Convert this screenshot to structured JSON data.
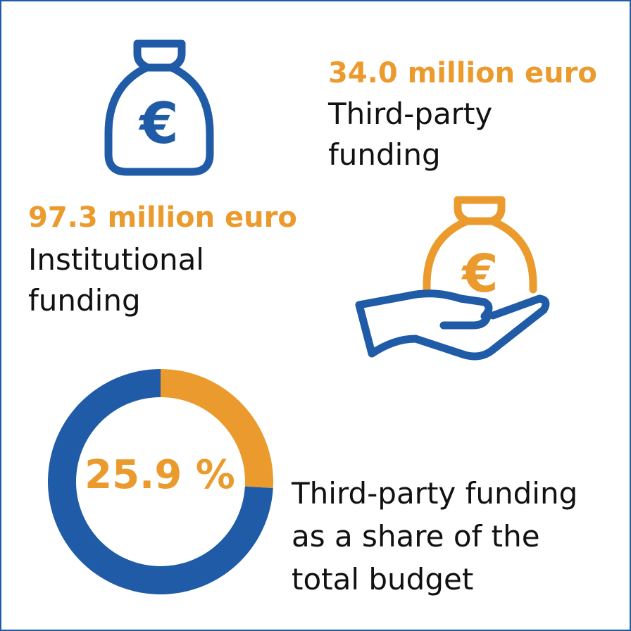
{
  "funding": {
    "third_party": {
      "amount": "34.0 million euro",
      "label_line1": "Third-party",
      "label_line2": "funding"
    },
    "institutional": {
      "amount": "97.3 million euro",
      "label_line1": "Institutional",
      "label_line2": "funding"
    }
  },
  "share": {
    "percent_text": "25.9 %",
    "label_line1": "Third-party funding",
    "label_line2": "as a share of the",
    "label_line3": "total budget"
  },
  "icons": {
    "money_bag": "euro-money-bag-icon",
    "hand_with_bag": "hand-holding-money-bag-icon"
  },
  "colors": {
    "blue": "#1f5ba6",
    "orange": "#eb9b2d",
    "text": "#111111"
  },
  "chart_data": {
    "type": "pie",
    "categories": [
      "Third-party funding",
      "Institutional funding"
    ],
    "values": [
      25.9,
      74.1
    ],
    "unit": "%",
    "colors": [
      "#eb9b2d",
      "#1f5ba6"
    ],
    "center_label": "25.9 %",
    "donut": true
  }
}
